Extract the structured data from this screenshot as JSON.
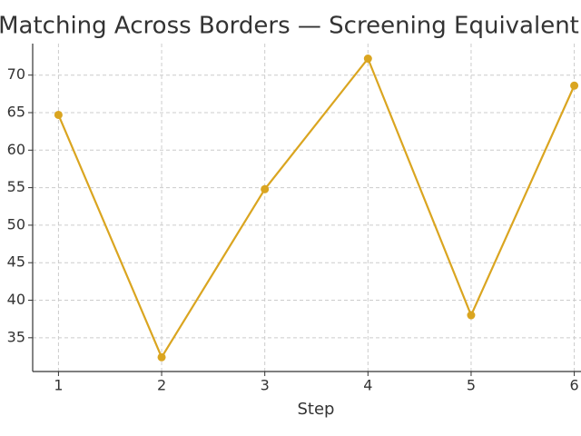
{
  "chart_data": {
    "type": "line",
    "title": "Matching Across Borders — Screening Equivalent",
    "x_label": "Step",
    "x": [
      1,
      2,
      3,
      4,
      5,
      6
    ],
    "values": [
      64.7,
      32.4,
      54.8,
      72.2,
      38.0,
      68.6
    ],
    "color": "#DAA520",
    "xlim": [
      0.75,
      6.25
    ],
    "xticks": [
      1,
      2,
      3,
      4,
      5,
      6
    ],
    "ylim": [
      30.5,
      74.2
    ],
    "yticks": [
      35,
      40,
      45,
      50,
      55,
      60,
      65,
      70
    ],
    "grid": true
  }
}
